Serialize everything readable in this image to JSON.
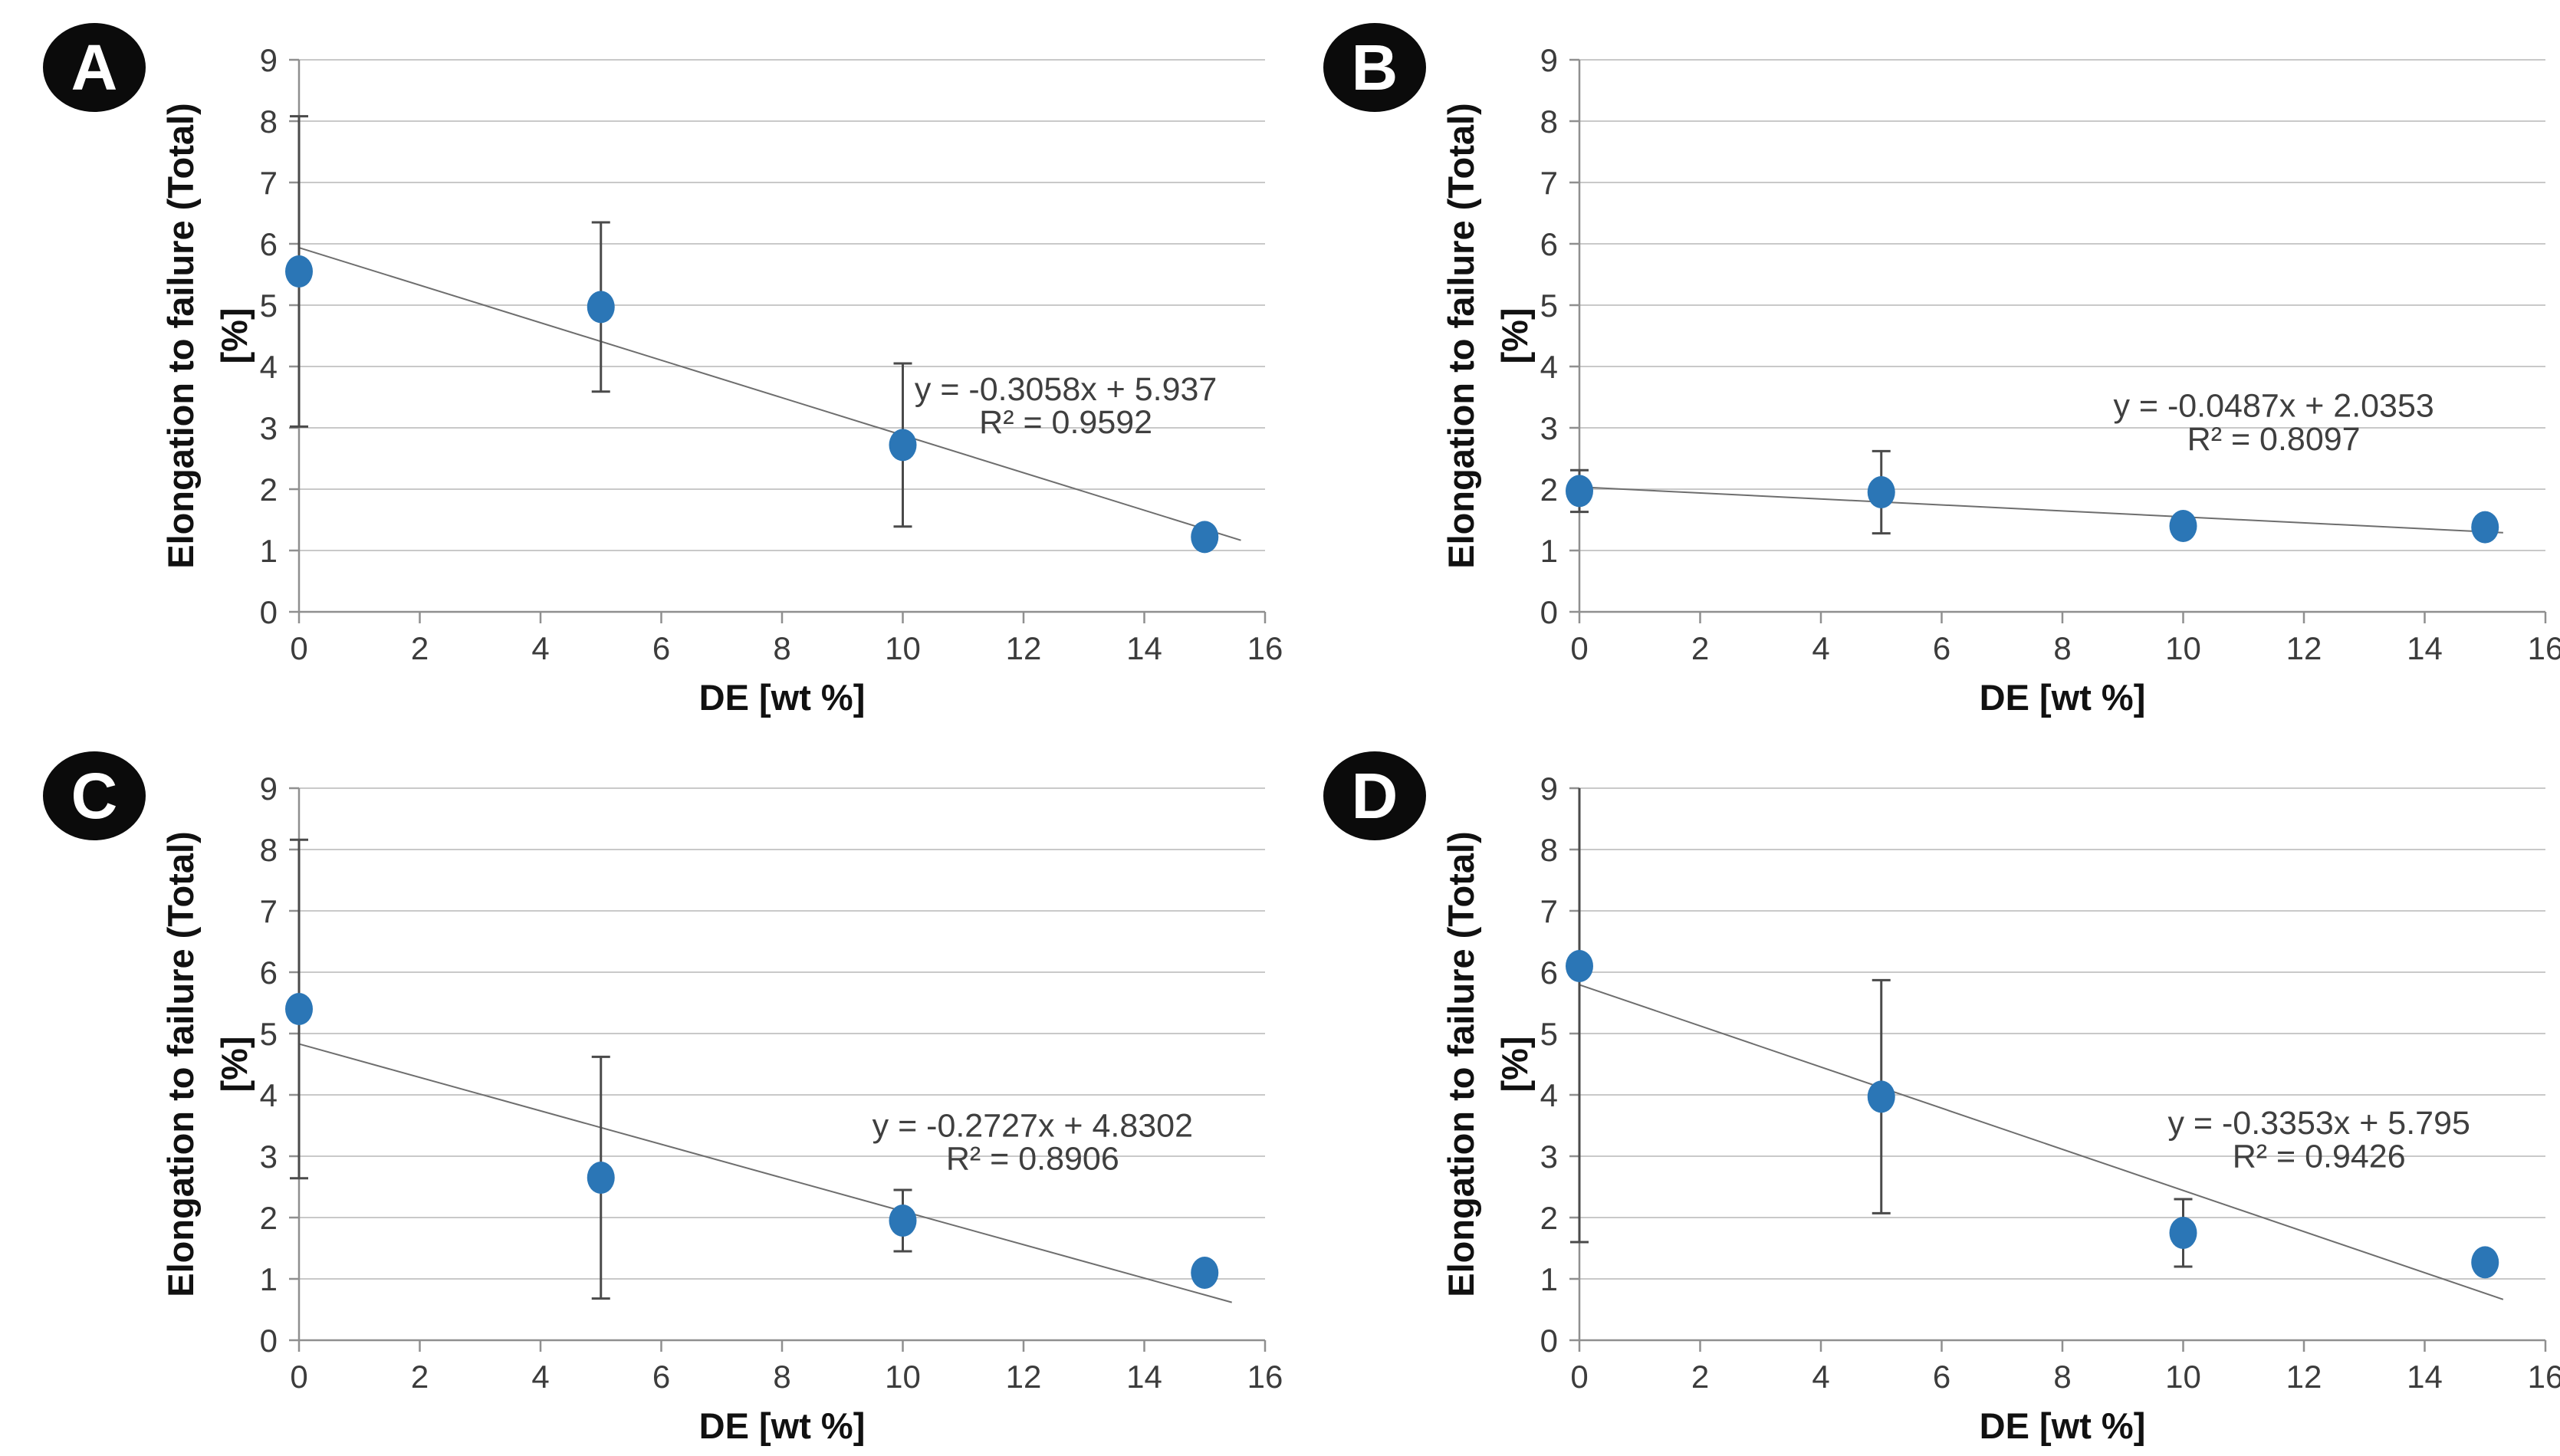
{
  "figure_title": "",
  "colors": {
    "marker": "#2B76B6",
    "trendline": "#6e6e6e",
    "error_bar": "#4a4a4a",
    "gridline": "#c9c9c9",
    "axis": "#8f8f8f",
    "badge_background": "#0b0b0b",
    "badge_text": "#ffffff"
  },
  "chart_data": [
    {
      "type": "scatter",
      "panel_label": "A",
      "title": "",
      "xlabel": "DE [wt %]",
      "ylabel_line1": "Elongation to failure (Total)",
      "ylabel_line2": "[%]",
      "xlim": [
        0,
        16
      ],
      "ylim": [
        0,
        9
      ],
      "xticks": [
        0,
        2,
        4,
        6,
        8,
        10,
        12,
        14,
        16
      ],
      "yticks": [
        0,
        1,
        2,
        3,
        4,
        5,
        6,
        7,
        8,
        9
      ],
      "grid": true,
      "legend": "none",
      "x": [
        0,
        5,
        10,
        15
      ],
      "y": [
        5.55,
        4.97,
        2.72,
        1.22
      ],
      "y_err": [
        2.53,
        1.38,
        1.33,
        0
      ],
      "trendline": {
        "slope": -0.3058,
        "intercept": 5.937,
        "x_start": 0,
        "x_end": 15.6
      },
      "equation": "y = -0.3058x + 5.937",
      "r_squared": "R² = 0.9592",
      "equation_pos": {
        "x": 12.7,
        "y": 3.45
      }
    },
    {
      "type": "scatter",
      "panel_label": "B",
      "title": "",
      "xlabel": "DE [wt %]",
      "ylabel_line1": "Elongation to failure (Total)",
      "ylabel_line2": "[%]",
      "xlim": [
        0,
        16
      ],
      "ylim": [
        0,
        9
      ],
      "xticks": [
        0,
        2,
        4,
        6,
        8,
        10,
        12,
        14,
        16
      ],
      "yticks": [
        0,
        1,
        2,
        3,
        4,
        5,
        6,
        7,
        8,
        9
      ],
      "grid": true,
      "legend": "none",
      "x": [
        0,
        5,
        10,
        15
      ],
      "y": [
        1.97,
        1.95,
        1.4,
        1.38
      ],
      "y_err": [
        0.34,
        0.67,
        0,
        0
      ],
      "trendline": {
        "slope": -0.0487,
        "intercept": 2.0353,
        "x_start": 0,
        "x_end": 15.3
      },
      "equation": "y = -0.0487x + 2.0353",
      "r_squared": "R² = 0.8097",
      "equation_pos": {
        "x": 11.5,
        "y": 3.18
      }
    },
    {
      "type": "scatter",
      "panel_label": "C",
      "title": "",
      "xlabel": "DE [wt %]",
      "ylabel_line1": "Elongation to failure (Total)",
      "ylabel_line2": "[%]",
      "xlim": [
        0,
        16
      ],
      "ylim": [
        0,
        9
      ],
      "xticks": [
        0,
        2,
        4,
        6,
        8,
        10,
        12,
        14,
        16
      ],
      "yticks": [
        0,
        1,
        2,
        3,
        4,
        5,
        6,
        7,
        8,
        9
      ],
      "grid": true,
      "legend": "none",
      "x": [
        0,
        5,
        10,
        15
      ],
      "y": [
        5.4,
        2.65,
        1.95,
        1.1
      ],
      "y_err": [
        2.76,
        1.97,
        0.5,
        0
      ],
      "trendline": {
        "slope": -0.2727,
        "intercept": 4.8302,
        "x_start": 0,
        "x_end": 15.45
      },
      "equation": "y = -0.2727x + 4.8302",
      "r_squared": "R² = 0.8906",
      "equation_pos": {
        "x": 12.15,
        "y": 3.32
      }
    },
    {
      "type": "scatter",
      "panel_label": "D",
      "title": "",
      "xlabel": "DE [wt %]",
      "ylabel_line1": "Elongation to failure (Total)",
      "ylabel_line2": "[%]",
      "xlim": [
        0,
        16
      ],
      "ylim": [
        0,
        9
      ],
      "xticks": [
        0,
        2,
        4,
        6,
        8,
        10,
        12,
        14,
        16
      ],
      "yticks": [
        0,
        1,
        2,
        3,
        4,
        5,
        6,
        7,
        8,
        9
      ],
      "grid": true,
      "legend": "none",
      "x": [
        0,
        5,
        10,
        15
      ],
      "y": [
        6.1,
        3.97,
        1.75,
        1.27
      ],
      "y_err": [
        4.5,
        1.9,
        0.55,
        0
      ],
      "trendline": {
        "slope": -0.3353,
        "intercept": 5.795,
        "x_start": 0,
        "x_end": 15.3
      },
      "equation": "y = -0.3353x + 5.795",
      "r_squared": "R² = 0.9426",
      "equation_pos": {
        "x": 12.25,
        "y": 3.36
      }
    }
  ]
}
